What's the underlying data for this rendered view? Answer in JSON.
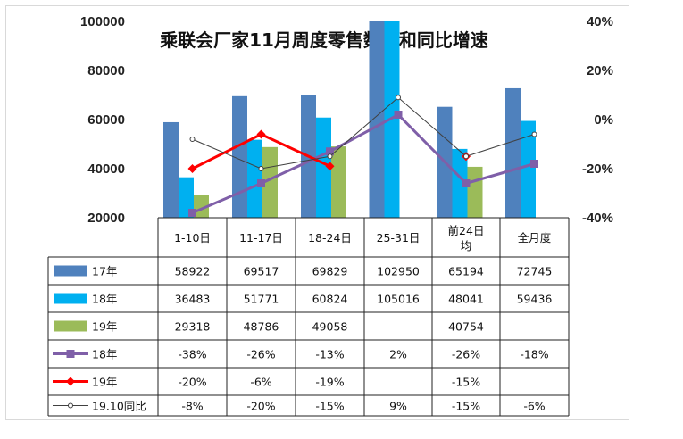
{
  "chart_data": {
    "type": "bar",
    "title": "乘联会厂家11月周度零售数量和同比增速",
    "categories": [
      "1-10日",
      "11-17日",
      "18-24日",
      "25-31日",
      "前24日均",
      "全月度"
    ],
    "header_labels": [
      [
        "1-10日"
      ],
      [
        "11-17日"
      ],
      [
        "18-24日"
      ],
      [
        "25-31日"
      ],
      [
        "前24日",
        "均"
      ],
      [
        "全月度"
      ]
    ],
    "y_left": {
      "min": 20000,
      "max": 100000,
      "ticks": [
        "100000",
        "80000",
        "60000",
        "40000",
        "20000"
      ]
    },
    "y_right": {
      "min": -40,
      "max": 40,
      "unit": "%",
      "ticks": [
        "40%",
        "20%",
        "0%",
        "-20%",
        "-40%"
      ]
    },
    "bar_series": [
      {
        "name": "17年",
        "color": "#4f81bd",
        "values": [
          58922,
          69517,
          69829,
          102950,
          65194,
          72745
        ],
        "labels": [
          "58922",
          "69517",
          "69829",
          "102950",
          "65194",
          "72745"
        ]
      },
      {
        "name": "18年",
        "color": "#00b0f0",
        "values": [
          36483,
          51771,
          60824,
          105016,
          48041,
          59436
        ],
        "labels": [
          "36483",
          "51771",
          "60824",
          "105016",
          "48041",
          "59436"
        ]
      },
      {
        "name": "19年",
        "color": "#9bbb59",
        "values": [
          29318,
          48786,
          49058,
          null,
          40754,
          null
        ],
        "labels": [
          "29318",
          "48786",
          "49058",
          "",
          "40754",
          ""
        ]
      }
    ],
    "line_series": [
      {
        "name": "18年",
        "color": "#7f5fa8",
        "marker": "square",
        "values": [
          -38,
          -26,
          -13,
          2,
          -26,
          -18
        ],
        "labels": [
          "-38%",
          "-26%",
          "-13%",
          "2%",
          "-26%",
          "-18%"
        ]
      },
      {
        "name": "19年",
        "color": "#ff0000",
        "marker": "diamond",
        "values": [
          -20,
          -6,
          -19,
          null,
          -15,
          null
        ],
        "labels": [
          "-20%",
          "-6%",
          "-19%",
          "",
          "-15%",
          ""
        ]
      },
      {
        "name": "19.10同比",
        "color": "#404040",
        "marker": "circle",
        "values": [
          -8,
          -20,
          -15,
          9,
          -15,
          -6
        ],
        "labels": [
          "-8%",
          "-20%",
          "-15%",
          "9%",
          "-15%",
          "-6%"
        ]
      }
    ]
  }
}
